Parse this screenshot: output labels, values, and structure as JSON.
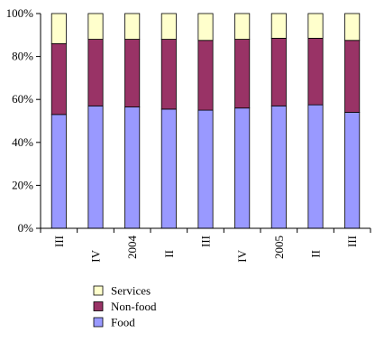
{
  "chart_data": {
    "type": "bar",
    "stacked": true,
    "normalized": true,
    "categories": [
      "III",
      "IV",
      "2004",
      "II",
      "III",
      "IV",
      "2005",
      "II",
      "III"
    ],
    "series": [
      {
        "name": "Food",
        "color": "#9999ff",
        "values": [
          53,
          57,
          56.5,
          55.5,
          55,
          56,
          57,
          57.5,
          54
        ]
      },
      {
        "name": "Non-food",
        "color": "#993366",
        "values": [
          33,
          31,
          31.5,
          32.5,
          32.5,
          32,
          31.5,
          31,
          33.5
        ]
      },
      {
        "name": "Services",
        "color": "#ffffcc",
        "values": [
          14,
          12,
          12,
          12,
          12.5,
          12,
          11.5,
          11.5,
          12.5
        ]
      }
    ],
    "y_ticks": [
      "0%",
      "20%",
      "40%",
      "60%",
      "80%",
      "100%"
    ],
    "ylim": [
      0,
      100
    ],
    "legend_order": [
      "Services",
      "Non-food",
      "Food"
    ],
    "legend_position": "bottom-center",
    "grid": false
  }
}
